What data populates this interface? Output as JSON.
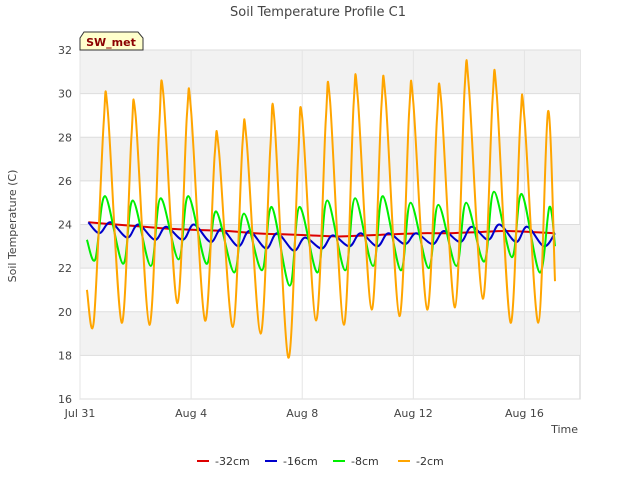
{
  "chart_data": {
    "type": "line",
    "title": "Soil Temperature Profile C1",
    "xlabel": "Time",
    "ylabel": "Soil Temperature (C)",
    "badge": "SW_met",
    "ylim": [
      16,
      32
    ],
    "y_ticks": [
      16,
      18,
      20,
      22,
      24,
      26,
      28,
      30,
      32
    ],
    "xlim": [
      0,
      18
    ],
    "x_ticks": [
      {
        "x": 0,
        "label": "Jul 31"
      },
      {
        "x": 4,
        "label": "Aug 4"
      },
      {
        "x": 8,
        "label": "Aug 8"
      },
      {
        "x": 12,
        "label": "Aug 12"
      },
      {
        "x": 16,
        "label": "Aug 16"
      }
    ],
    "grid": true,
    "legend_position": "bottom",
    "series": [
      {
        "name": "-32cm",
        "color": "#dd0000",
        "x": [
          0.3,
          1.3,
          2.3,
          3.3,
          4.3,
          5.3,
          6.3,
          7.3,
          8.3,
          9.3,
          10.3,
          11.3,
          12.3,
          13.3,
          14.3,
          15.3,
          16.3,
          17.1
        ],
        "values": [
          24.1,
          24.0,
          23.9,
          23.8,
          23.75,
          23.7,
          23.6,
          23.55,
          23.5,
          23.45,
          23.5,
          23.55,
          23.6,
          23.6,
          23.65,
          23.7,
          23.65,
          23.6
        ]
      },
      {
        "name": "-16cm",
        "color": "#0000cc",
        "x": [
          0.3,
          0.7,
          1.1,
          1.7,
          2.1,
          2.7,
          3.1,
          3.7,
          4.1,
          4.7,
          5.1,
          5.7,
          6.1,
          6.7,
          7.1,
          7.7,
          8.1,
          8.7,
          9.1,
          9.7,
          10.1,
          10.7,
          11.1,
          11.7,
          12.1,
          12.7,
          13.1,
          13.7,
          14.1,
          14.7,
          15.1,
          15.7,
          16.1,
          16.7,
          17.1
        ],
        "values": [
          24.1,
          23.6,
          24.1,
          23.4,
          24.0,
          23.3,
          23.9,
          23.3,
          24.0,
          23.2,
          23.8,
          23.0,
          23.7,
          22.9,
          23.6,
          22.8,
          23.4,
          22.9,
          23.5,
          23.0,
          23.6,
          23.0,
          23.6,
          23.1,
          23.6,
          23.1,
          23.7,
          23.2,
          23.9,
          23.3,
          24.0,
          23.2,
          23.9,
          23.0,
          23.6
        ]
      },
      {
        "name": "-8cm",
        "color": "#00ee00",
        "x": [
          0.25,
          0.55,
          0.9,
          1.55,
          1.9,
          2.55,
          2.9,
          3.55,
          3.9,
          4.55,
          4.9,
          5.55,
          5.9,
          6.55,
          6.9,
          7.55,
          7.9,
          8.55,
          8.9,
          9.55,
          9.9,
          10.55,
          10.9,
          11.55,
          11.9,
          12.55,
          12.9,
          13.55,
          13.9,
          14.55,
          14.9,
          15.55,
          15.9,
          16.55,
          16.9,
          17.1
        ],
        "values": [
          23.3,
          22.4,
          25.3,
          22.2,
          25.1,
          22.1,
          25.2,
          22.4,
          25.3,
          22.2,
          24.6,
          21.8,
          24.5,
          21.9,
          24.8,
          21.2,
          24.8,
          21.8,
          25.1,
          21.9,
          25.2,
          22.1,
          25.3,
          21.9,
          25.0,
          22.0,
          24.9,
          22.1,
          25.0,
          22.3,
          25.5,
          22.5,
          25.4,
          21.8,
          24.8,
          23.0
        ]
      },
      {
        "name": "-2cm",
        "color": "#ffa500",
        "x": [
          0.25,
          0.5,
          0.85,
          1.0,
          1.5,
          1.85,
          2.0,
          2.5,
          2.85,
          3.0,
          3.5,
          3.85,
          4.0,
          4.5,
          4.85,
          5.0,
          5.5,
          5.85,
          6.0,
          6.5,
          6.85,
          7.0,
          7.5,
          7.85,
          8.0,
          8.5,
          8.85,
          9.0,
          9.5,
          9.85,
          10.0,
          10.5,
          10.85,
          11.0,
          11.5,
          11.85,
          12.0,
          12.5,
          12.85,
          13.0,
          13.5,
          13.85,
          14.0,
          14.5,
          14.85,
          15.0,
          15.5,
          15.85,
          16.0,
          16.5,
          16.85,
          17.1
        ],
        "values": [
          21.0,
          19.6,
          28.6,
          29.2,
          19.5,
          28.0,
          29.0,
          19.4,
          28.5,
          30.0,
          20.4,
          29.0,
          29.2,
          19.6,
          27.2,
          27.4,
          19.3,
          27.7,
          27.8,
          19.0,
          27.5,
          28.8,
          17.9,
          27.0,
          28.9,
          19.6,
          28.8,
          29.7,
          19.4,
          29.5,
          29.8,
          20.1,
          29.4,
          29.8,
          19.8,
          29.2,
          29.6,
          20.1,
          28.8,
          29.7,
          20.2,
          30.3,
          30.3,
          20.6,
          29.7,
          30.0,
          19.5,
          28.7,
          28.9,
          19.5,
          29.2,
          21.4
        ]
      }
    ]
  }
}
